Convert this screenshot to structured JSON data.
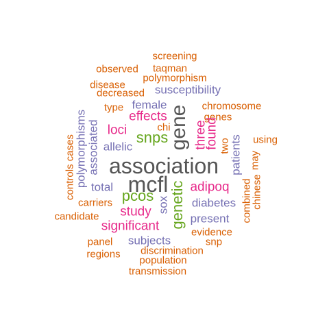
{
  "palette": {
    "orange": "#d95f02",
    "purple": "#7570b3",
    "magenta": "#e7298a",
    "green": "#66a61e",
    "gray": "#555555"
  },
  "words": {
    "screening": "screening",
    "observed": "observed",
    "taqman": "taqman",
    "polymorphism": "polymorphism",
    "disease": "disease",
    "decreased": "decreased",
    "susceptibility": "susceptibility",
    "female": "female",
    "type": "type",
    "chromosome": "chromosome",
    "effects": "effects",
    "genes": "genes",
    "chi": "chi",
    "gene": "gene",
    "snps": "snps",
    "loci": "loci",
    "three": "three",
    "found": "found",
    "two": "two",
    "polymorphisms": "polymorphisms",
    "controls_cases": "controls cases",
    "associated": "associated",
    "allelic": "allelic",
    "using": "using",
    "patients": "patients",
    "may": "may",
    "association": "association",
    "mcfl": "mcfl",
    "total": "total",
    "adipoq": "adipoq",
    "genetic": "genetic",
    "chinese": "chinese",
    "combined": "combined",
    "pcos": "pcos",
    "diabetes": "diabetes",
    "carriers": "carriers",
    "sox": "sox",
    "study": "study",
    "candidate": "candidate",
    "present": "present",
    "significant": "significant",
    "evidence": "evidence",
    "panel": "panel",
    "subjects": "subjects",
    "snp": "snp",
    "regions": "regions",
    "discrimination": "discrimination",
    "population": "population",
    "transmission": "transmission"
  }
}
